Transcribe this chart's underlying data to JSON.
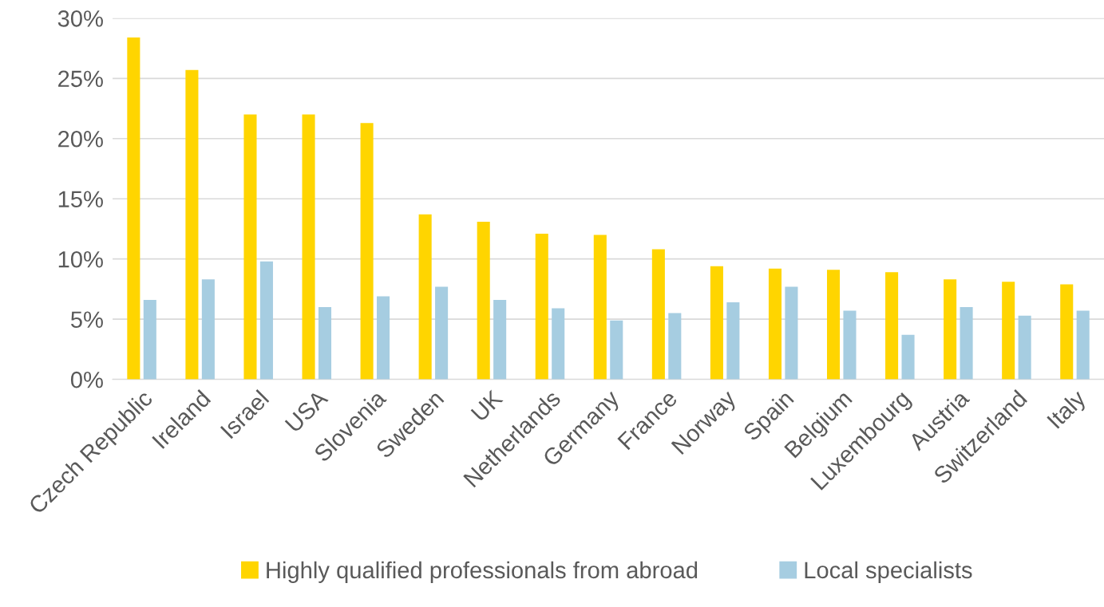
{
  "chart_data": {
    "type": "bar",
    "categories": [
      "Czech Republic",
      "Ireland",
      "Israel",
      "USA",
      "Slovenia",
      "Sweden",
      "UK",
      "Netherlands",
      "Germany",
      "France",
      "Norway",
      "Spain",
      "Belgium",
      "Luxembourg",
      "Austria",
      "Switzerland",
      "Italy"
    ],
    "series": [
      {
        "name": "Highly qualified professionals from abroad",
        "color": "#ffd500",
        "values": [
          28.4,
          25.7,
          22.0,
          22.0,
          21.3,
          13.7,
          13.1,
          12.1,
          12.0,
          10.8,
          9.4,
          9.2,
          9.1,
          8.9,
          8.3,
          8.1,
          7.9
        ]
      },
      {
        "name": "Local specialists",
        "color": "#a6cde1",
        "values": [
          6.6,
          8.3,
          9.8,
          6.0,
          6.9,
          7.7,
          6.6,
          5.9,
          4.9,
          5.5,
          6.4,
          7.7,
          5.7,
          3.7,
          6.0,
          5.3,
          5.7
        ]
      }
    ],
    "ylim": [
      0,
      30
    ],
    "yticks": [
      {
        "value": 0,
        "label": "0%"
      },
      {
        "value": 5,
        "label": "5%"
      },
      {
        "value": 10,
        "label": "10%"
      },
      {
        "value": 15,
        "label": "15%"
      },
      {
        "value": 20,
        "label": "20%"
      },
      {
        "value": 25,
        "label": "25%"
      },
      {
        "value": 30,
        "label": "30%"
      }
    ],
    "grid": "y",
    "legend": "bottom"
  }
}
